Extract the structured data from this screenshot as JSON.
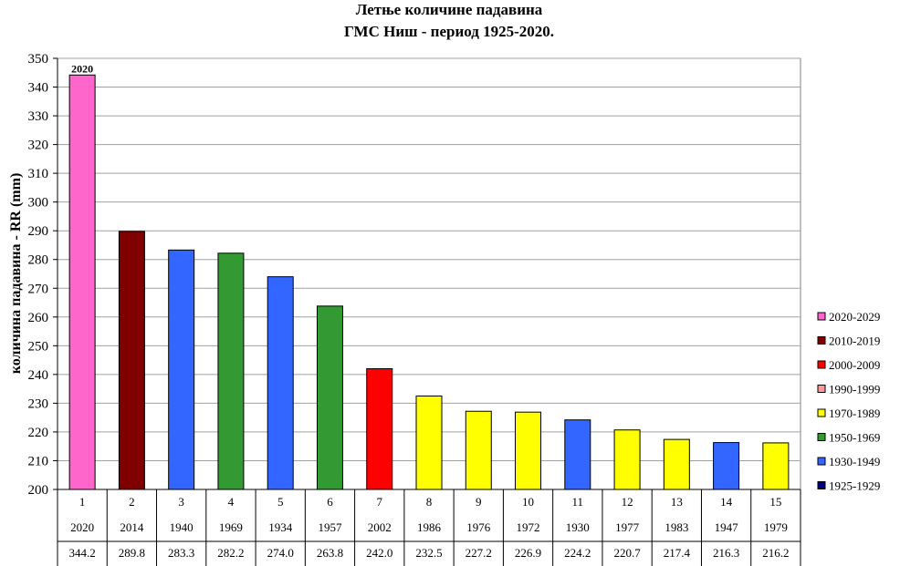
{
  "chart_data": {
    "type": "bar",
    "title_line1": "Летње количине падавина",
    "title_line2": "ГМС  Ниш - период 1925-2020.",
    "ylabel": "количина падавина - RR (mm)",
    "ylim": [
      200,
      350
    ],
    "ytick_step": 10,
    "grid": true,
    "legend_position": "right",
    "ranks": [
      "1",
      "2",
      "3",
      "4",
      "5",
      "6",
      "7",
      "8",
      "9",
      "10",
      "11",
      "12",
      "13",
      "14",
      "15"
    ],
    "years": [
      "2020",
      "2014",
      "1940",
      "1969",
      "1934",
      "1957",
      "2002",
      "1986",
      "1976",
      "1972",
      "1930",
      "1977",
      "1983",
      "1947",
      "1979"
    ],
    "value_labels": [
      "344.2",
      "289.8",
      "283.3",
      "282.2",
      "274.0",
      "263.8",
      "242.0",
      "232.5",
      "227.2",
      "226.9",
      "224.2",
      "220.7",
      "217.4",
      "216.3",
      "216.2"
    ],
    "values": [
      344.2,
      289.8,
      283.3,
      282.2,
      274.0,
      263.8,
      242.0,
      232.5,
      227.2,
      226.9,
      224.2,
      220.7,
      217.4,
      216.3,
      216.2
    ],
    "bar_groups": [
      "2020-2029",
      "2010-2019",
      "1930-1949",
      "1950-1969",
      "1930-1949",
      "1950-1969",
      "2000-2009",
      "1970-1989",
      "1970-1989",
      "1970-1989",
      "1930-1949",
      "1970-1989",
      "1970-1989",
      "1930-1949",
      "1970-1989"
    ],
    "annotation": {
      "text": "2020",
      "bar_index": 0
    },
    "legend": [
      {
        "label": "2020-2029",
        "color": "#ff66cc"
      },
      {
        "label": "2010-2019",
        "color": "#800000"
      },
      {
        "label": "2000-2009",
        "color": "#ff0000"
      },
      {
        "label": "1990-1999",
        "color": "#ff9999"
      },
      {
        "label": "1970-1989",
        "color": "#ffff00"
      },
      {
        "label": "1950-1969",
        "color": "#339933"
      },
      {
        "label": "1930-1949",
        "color": "#3366ff"
      },
      {
        "label": "1925-1929",
        "color": "#000080"
      }
    ]
  }
}
